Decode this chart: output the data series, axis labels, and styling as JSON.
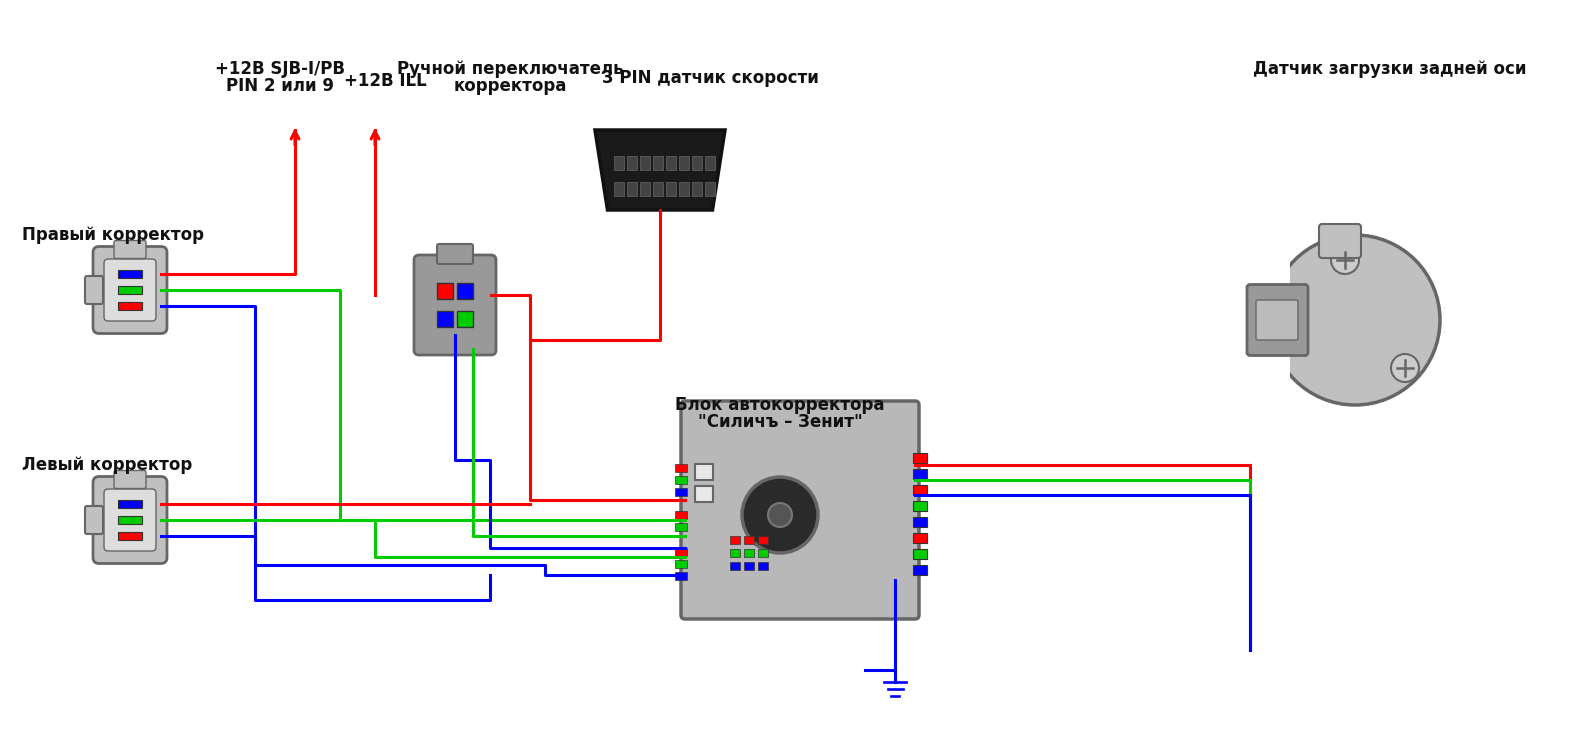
{
  "bg_color": "#ffffff",
  "label_sjb": "+12В SJB-I/PB",
  "label_pin": "PIN 2 или 9",
  "label_ill": "+12В ILL",
  "label_switch1": "Ручной переключатель",
  "label_switch2": "корректора",
  "label_speed": "3 PIN датчик скорости",
  "label_sensor": "Датчик загрузки задней оси",
  "label_right": "Правый корректор",
  "label_left": "Левый корректор",
  "label_block1": "Блок автокорректора",
  "label_block2": "\"Силичъ – Зенит\"",
  "red": "#ff0000",
  "green": "#00cc00",
  "blue": "#0000ff",
  "gray_light": "#c0c0c0",
  "gray_mid": "#999999",
  "gray_dark": "#666666",
  "black": "#111111",
  "wire_lw": 2.2
}
